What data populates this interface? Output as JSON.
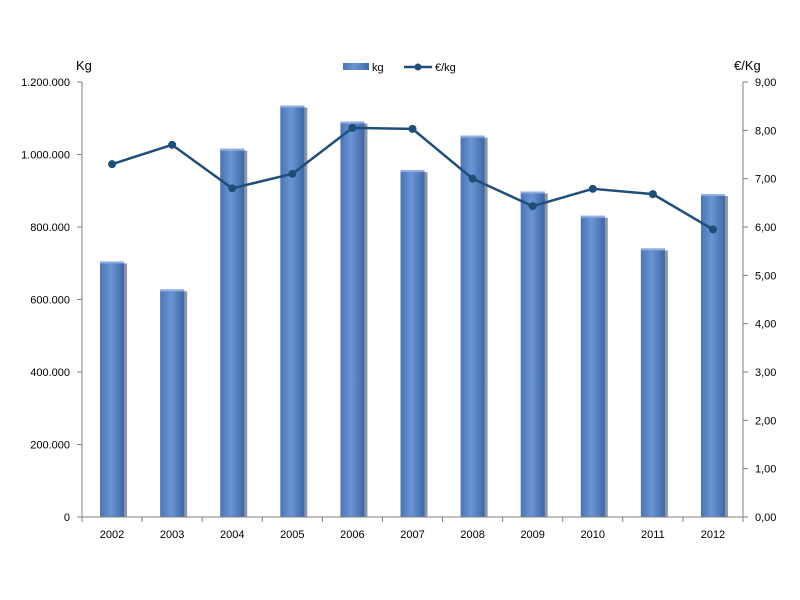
{
  "chart_data": {
    "type": "bar",
    "categories": [
      "2002",
      "2003",
      "2004",
      "2005",
      "2006",
      "2007",
      "2008",
      "2009",
      "2010",
      "2011",
      "2012"
    ],
    "series": [
      {
        "name": "kg",
        "type": "bar",
        "axis": "left",
        "values": [
          705000,
          628000,
          1016000,
          1135000,
          1091000,
          957000,
          1052000,
          898000,
          831000,
          741000,
          891000
        ]
      },
      {
        "name": "€/kg",
        "type": "line",
        "axis": "right",
        "values": [
          7.3,
          7.7,
          6.8,
          7.1,
          8.05,
          8.03,
          7.0,
          6.43,
          6.79,
          6.68,
          5.95
        ]
      }
    ],
    "ylabel": "Kg",
    "y2label": "€/Kg",
    "ylim": [
      0,
      1200000
    ],
    "y2lim": [
      0,
      9
    ],
    "yticks": [
      "0",
      "200.000",
      "400.000",
      "600.000",
      "800.000",
      "1.000.000",
      "1.200.000"
    ],
    "y2ticks": [
      "0,00",
      "1,00",
      "2,00",
      "3,00",
      "4,00",
      "5,00",
      "6,00",
      "7,00",
      "8,00",
      "9,00"
    ],
    "grid": false,
    "legend": "top-center",
    "colors": {
      "bar": "#5b87c9",
      "bar_dark": "#3b5f9a",
      "line": "#1f4e79",
      "axis": "#7f7f7f"
    }
  }
}
